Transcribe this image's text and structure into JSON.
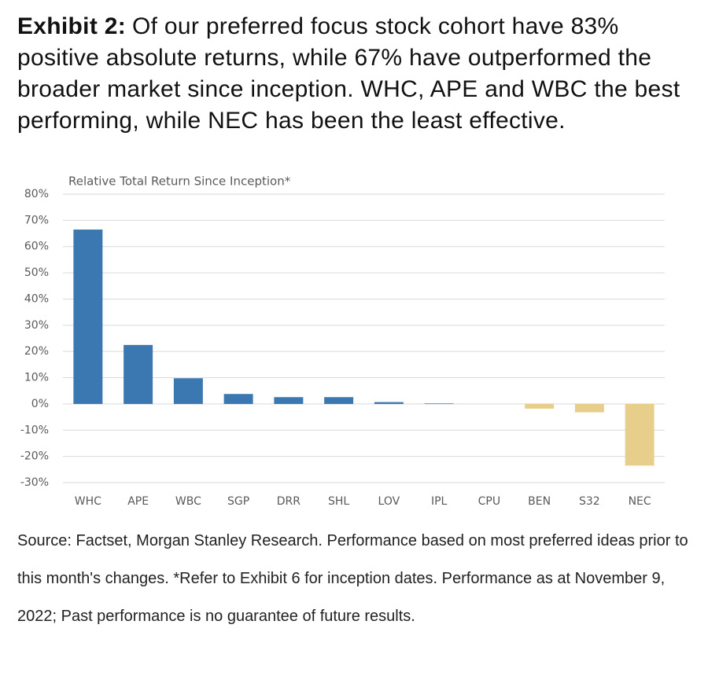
{
  "chart_data": {
    "type": "bar",
    "title_label": "Exhibit 2:",
    "title": "Of our preferred focus stock cohort have 83% positive absolute returns, while 67% have outperformed the broader market since inception. WHC, APE and WBC the best performing, while NEC has been the least effective.",
    "subtitle": "Relative Total Return Since Inception*",
    "categories": [
      "WHC",
      "APE",
      "WBC",
      "SGP",
      "DRR",
      "SHL",
      "LOV",
      "IPL",
      "CPU",
      "BEN",
      "S32",
      "NEC"
    ],
    "values": [
      66.5,
      22.5,
      9.8,
      3.8,
      2.6,
      2.6,
      0.7,
      0.2,
      0,
      -1.8,
      -3.2,
      -23.5
    ],
    "colors": [
      "#3b77b0",
      "#3b77b0",
      "#3b77b0",
      "#3b77b0",
      "#3b77b0",
      "#3b77b0",
      "#3b77b0",
      "#3b77b0",
      "#3b77b0",
      "#e7cf8b",
      "#e7cf8b",
      "#e7cf8b"
    ],
    "ylim": [
      -30,
      80
    ],
    "yticks": [
      {
        "value": -30,
        "label": "-30%"
      },
      {
        "value": -20,
        "label": "-20%"
      },
      {
        "value": -10,
        "label": "-10%"
      },
      {
        "value": 0,
        "label": "0%"
      },
      {
        "value": 10,
        "label": "10%"
      },
      {
        "value": 20,
        "label": "20%"
      },
      {
        "value": 30,
        "label": "30%"
      },
      {
        "value": 40,
        "label": "40%"
      },
      {
        "value": 50,
        "label": "50%"
      },
      {
        "value": 60,
        "label": "60%"
      },
      {
        "value": 70,
        "label": "70%"
      },
      {
        "value": 80,
        "label": "80%"
      }
    ],
    "grid": true,
    "source": "Source: Factset, Morgan Stanley Research. Performance based on most preferred ideas prior to this month's changes. *Refer to Exhibit 6 for inception dates. Performance as at November 9, 2022; Past performance is no guarantee of future results."
  }
}
